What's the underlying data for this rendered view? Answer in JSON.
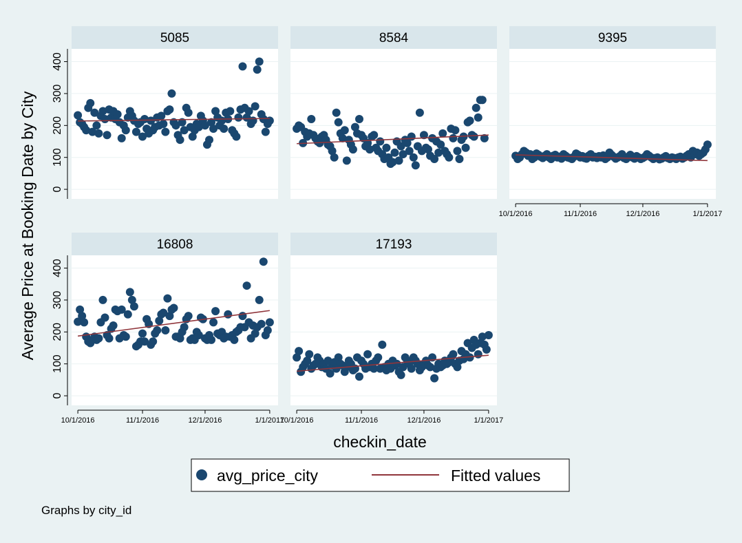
{
  "chart_data": {
    "type": "scatter",
    "ylabel": "Average Price at Booking Date by City",
    "xlabel": "checkin_date",
    "x_ticks": [
      "10/1/2016",
      "11/1/2016",
      "12/1/2016",
      "1/1/2017"
    ],
    "y_ticks": [
      "0",
      "100",
      "200",
      "300",
      "400"
    ],
    "ylim": [
      -30,
      440
    ],
    "xlim_days": [
      -3,
      96
    ],
    "legend": {
      "position": "bottom",
      "items": [
        {
          "name": "avg_price_city",
          "marker": "circle",
          "color": "#1a476f"
        },
        {
          "name": "Fitted values",
          "marker": "line",
          "color": "#90353b"
        }
      ]
    },
    "note": "Graphs by city_id",
    "panels": [
      {
        "title": "5085",
        "fit": [
          214,
          222
        ],
        "show_x_axis": false,
        "show_y_axis": true,
        "x": [
          0,
          1,
          2,
          3,
          4,
          5,
          6,
          7,
          8,
          9,
          10,
          11,
          12,
          13,
          14,
          15,
          16,
          17,
          18,
          19,
          20,
          21,
          22,
          23,
          24,
          25,
          26,
          27,
          28,
          29,
          30,
          31,
          32,
          33,
          34,
          35,
          36,
          37,
          38,
          39,
          40,
          41,
          42,
          43,
          44,
          45,
          46,
          47,
          48,
          49,
          50,
          51,
          52,
          53,
          54,
          55,
          56,
          57,
          58,
          59,
          60,
          61,
          62,
          63,
          64,
          65,
          66,
          67,
          68,
          69,
          70,
          71,
          72,
          73,
          74,
          75,
          76,
          77,
          78,
          79,
          80,
          81,
          82,
          83,
          84,
          85,
          86,
          87,
          88,
          89,
          90,
          91,
          92
        ],
        "y": [
          232,
          210,
          205,
          195,
          185,
          255,
          270,
          180,
          240,
          200,
          175,
          230,
          245,
          220,
          170,
          250,
          225,
          245,
          220,
          235,
          210,
          160,
          200,
          185,
          225,
          245,
          230,
          215,
          180,
          205,
          210,
          165,
          220,
          190,
          175,
          215,
          185,
          195,
          225,
          200,
          230,
          205,
          180,
          245,
          250,
          300,
          210,
          200,
          170,
          155,
          210,
          185,
          255,
          240,
          195,
          165,
          185,
          205,
          195,
          230,
          215,
          200,
          140,
          155,
          210,
          190,
          245,
          225,
          200,
          215,
          190,
          240,
          220,
          245,
          185,
          175,
          165,
          225,
          250,
          385,
          255,
          225,
          245,
          205,
          215,
          260,
          375,
          400,
          235,
          220,
          180,
          205,
          215
        ]
      },
      {
        "title": "8584",
        "fit": [
          143,
          170
        ],
        "show_x_axis": false,
        "show_y_axis": false,
        "x": [
          0,
          1,
          2,
          3,
          4,
          5,
          6,
          7,
          8,
          9,
          10,
          11,
          12,
          13,
          14,
          15,
          16,
          17,
          18,
          19,
          20,
          21,
          22,
          23,
          24,
          25,
          26,
          27,
          28,
          29,
          30,
          31,
          32,
          33,
          34,
          35,
          36,
          37,
          38,
          39,
          40,
          41,
          42,
          43,
          44,
          45,
          46,
          47,
          48,
          49,
          50,
          51,
          52,
          53,
          54,
          55,
          56,
          57,
          58,
          59,
          60,
          61,
          62,
          63,
          64,
          65,
          66,
          67,
          68,
          69,
          70,
          71,
          72,
          73,
          74,
          75,
          76,
          77,
          78,
          79,
          80,
          81,
          82,
          83,
          84,
          85,
          86,
          87,
          88,
          89,
          90
        ],
        "y": [
          190,
          200,
          195,
          145,
          180,
          165,
          175,
          220,
          170,
          160,
          150,
          145,
          165,
          170,
          155,
          140,
          135,
          120,
          100,
          240,
          210,
          175,
          160,
          185,
          90,
          155,
          140,
          125,
          195,
          175,
          220,
          170,
          160,
          135,
          145,
          125,
          165,
          170,
          130,
          120,
          150,
          110,
          95,
          130,
          100,
          80,
          85,
          115,
          150,
          90,
          135,
          110,
          155,
          145,
          120,
          165,
          100,
          75,
          135,
          240,
          120,
          170,
          130,
          125,
          105,
          160,
          95,
          150,
          115,
          140,
          175,
          120,
          110,
          100,
          190,
          160,
          185,
          120,
          95,
          155,
          165,
          130,
          210,
          215,
          170,
          165,
          255,
          225,
          280,
          280,
          160
        ]
      },
      {
        "title": "9395",
        "fit": [
          108,
          90
        ],
        "show_x_axis": true,
        "show_y_axis": false,
        "x": [
          0,
          1,
          2,
          3,
          4,
          5,
          6,
          7,
          8,
          9,
          10,
          11,
          12,
          13,
          14,
          15,
          16,
          17,
          18,
          19,
          20,
          21,
          22,
          23,
          24,
          25,
          26,
          27,
          28,
          29,
          30,
          31,
          32,
          33,
          34,
          35,
          36,
          37,
          38,
          39,
          40,
          41,
          42,
          43,
          44,
          45,
          46,
          47,
          48,
          49,
          50,
          51,
          52,
          53,
          54,
          55,
          56,
          57,
          58,
          59,
          60,
          61,
          62,
          63,
          64,
          65,
          66,
          67,
          68,
          69,
          70,
          71,
          72,
          73,
          74,
          75,
          76,
          77,
          78,
          79,
          80,
          81,
          82,
          83,
          84,
          85,
          86,
          87,
          88,
          89,
          90,
          91,
          92
        ],
        "y": [
          105,
          95,
          100,
          110,
          120,
          115,
          105,
          110,
          95,
          100,
          112,
          108,
          102,
          98,
          105,
          110,
          100,
          95,
          105,
          108,
          100,
          102,
          96,
          110,
          105,
          100,
          98,
          95,
          102,
          112,
          108,
          100,
          104,
          98,
          96,
          105,
          110,
          100,
          102,
          98,
          104,
          100,
          106,
          95,
          100,
          115,
          108,
          102,
          96,
          100,
          104,
          110,
          98,
          95,
          102,
          108,
          100,
          96,
          104,
          100,
          95,
          98,
          102,
          110,
          105,
          100,
          95,
          98,
          100,
          94,
          96,
          100,
          104,
          98,
          95,
          100,
          98,
          95,
          100,
          102,
          96,
          100,
          105,
          110,
          100,
          120,
          110,
          115,
          105,
          110,
          115,
          125,
          140
        ]
      },
      {
        "title": "16808",
        "fit": [
          187,
          267
        ],
        "show_x_axis": true,
        "show_y_axis": true,
        "x": [
          0,
          1,
          2,
          3,
          4,
          5,
          6,
          7,
          8,
          9,
          10,
          11,
          12,
          13,
          14,
          15,
          16,
          17,
          18,
          19,
          20,
          21,
          22,
          23,
          24,
          25,
          26,
          27,
          28,
          29,
          30,
          31,
          32,
          33,
          34,
          35,
          36,
          37,
          38,
          39,
          40,
          41,
          42,
          43,
          44,
          45,
          46,
          47,
          48,
          49,
          50,
          51,
          52,
          53,
          54,
          55,
          56,
          57,
          58,
          59,
          60,
          61,
          62,
          63,
          64,
          65,
          66,
          67,
          68,
          69,
          70,
          71,
          72,
          73,
          74,
          75,
          76,
          77,
          78,
          79,
          80,
          81,
          82,
          83,
          84,
          85,
          86,
          87,
          88,
          89,
          90,
          91,
          92
        ],
        "y": [
          232,
          270,
          250,
          230,
          185,
          170,
          165,
          175,
          185,
          175,
          180,
          230,
          300,
          245,
          190,
          180,
          210,
          220,
          270,
          265,
          180,
          270,
          190,
          185,
          255,
          325,
          300,
          280,
          155,
          160,
          170,
          195,
          170,
          240,
          225,
          160,
          170,
          195,
          205,
          235,
          255,
          260,
          205,
          305,
          250,
          270,
          275,
          185,
          185,
          180,
          200,
          215,
          240,
          250,
          175,
          180,
          175,
          200,
          190,
          245,
          240,
          180,
          175,
          190,
          175,
          230,
          265,
          195,
          190,
          200,
          180,
          185,
          255,
          185,
          190,
          175,
          200,
          205,
          215,
          250,
          215,
          345,
          230,
          180,
          220,
          195,
          215,
          300,
          225,
          420,
          190,
          205,
          230
        ]
      },
      {
        "title": "17193",
        "fit": [
          77,
          127
        ],
        "show_x_axis": true,
        "show_y_axis": false,
        "x": [
          0,
          1,
          2,
          3,
          4,
          5,
          6,
          7,
          8,
          9,
          10,
          11,
          12,
          13,
          14,
          15,
          16,
          17,
          18,
          19,
          20,
          21,
          22,
          23,
          24,
          25,
          26,
          27,
          28,
          29,
          30,
          31,
          32,
          33,
          34,
          35,
          36,
          37,
          38,
          39,
          40,
          41,
          42,
          43,
          44,
          45,
          46,
          47,
          48,
          49,
          50,
          51,
          52,
          53,
          54,
          55,
          56,
          57,
          58,
          59,
          60,
          61,
          62,
          63,
          64,
          65,
          66,
          67,
          68,
          69,
          70,
          71,
          72,
          73,
          74,
          75,
          76,
          77,
          78,
          79,
          80,
          81,
          82,
          83,
          84,
          85,
          86,
          87,
          88,
          89,
          90,
          91,
          92
        ],
        "y": [
          120,
          140,
          75,
          90,
          100,
          110,
          130,
          85,
          95,
          100,
          120,
          110,
          90,
          100,
          85,
          110,
          70,
          95,
          105,
          85,
          120,
          100,
          95,
          75,
          90,
          110,
          100,
          80,
          85,
          120,
          60,
          110,
          100,
          85,
          130,
          90,
          100,
          85,
          110,
          120,
          85,
          160,
          90,
          80,
          100,
          85,
          110,
          95,
          100,
          75,
          65,
          90,
          120,
          110,
          100,
          85,
          120,
          110,
          100,
          80,
          90,
          100,
          110,
          95,
          90,
          120,
          55,
          85,
          100,
          90,
          95,
          110,
          100,
          105,
          120,
          130,
          100,
          90,
          110,
          140,
          115,
          130,
          165,
          120,
          150,
          175,
          160,
          130,
          165,
          185,
          160,
          145,
          190
        ]
      }
    ]
  }
}
